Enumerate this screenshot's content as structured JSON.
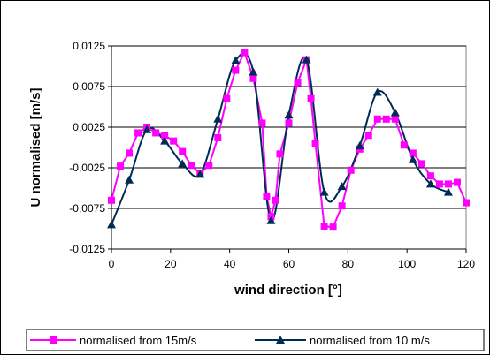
{
  "chart_data": {
    "type": "line",
    "title": "",
    "xlabel": "wind direction [°]",
    "ylabel": "U normalised [m/s]",
    "xlim": [
      0,
      120
    ],
    "ylim": [
      -0.0125,
      0.0125
    ],
    "x_ticks": [
      "0",
      "20",
      "40",
      "60",
      "80",
      "100",
      "120"
    ],
    "y_ticks": [
      "0,0125",
      "0,0075",
      "0,0025",
      "-0,0025",
      "-0,0075",
      "-0,0125"
    ],
    "grid": "horizontal",
    "legend_position": "bottom",
    "colors": {
      "series_1": "#ff00ff",
      "series_2": "#002b55"
    },
    "series": [
      {
        "name": "normalised from 15m/s",
        "marker": "square",
        "x": [
          0,
          3,
          6,
          9,
          12,
          15,
          18,
          21,
          24,
          27,
          30,
          33,
          36,
          39,
          42,
          45,
          48,
          51,
          52.5,
          54,
          55.5,
          57,
          60,
          63,
          66,
          67.5,
          69,
          72,
          75,
          78,
          81,
          84,
          87,
          90,
          93,
          96,
          99,
          102,
          105,
          108,
          111,
          114,
          117,
          120
        ],
        "y": [
          -0.0065,
          -0.0023,
          -0.0007,
          0.0018,
          0.0025,
          0.0018,
          0.0015,
          0.0008,
          -0.0005,
          -0.0022,
          -0.0032,
          -0.0022,
          0.0012,
          0.006,
          0.0095,
          0.0117,
          0.0085,
          0.003,
          -0.006,
          -0.0085,
          -0.0065,
          -0.0008,
          0.003,
          0.008,
          0.0108,
          0.006,
          0.0005,
          -0.0097,
          -0.0098,
          -0.0072,
          -0.0028,
          -0.0002,
          0.0015,
          0.0035,
          0.0035,
          0.0035,
          0.0003,
          -0.0007,
          -0.002,
          -0.0035,
          -0.0045,
          -0.0045,
          -0.0043,
          -0.0068
        ]
      },
      {
        "name": "normalised from 10 m/s",
        "marker": "triangle",
        "x": [
          0,
          6,
          12,
          18,
          24,
          30,
          36,
          42,
          48,
          54,
          60,
          66,
          72,
          78,
          84,
          90,
          96,
          102,
          108,
          114
        ],
        "y": [
          -0.0095,
          -0.004,
          0.0022,
          0.0008,
          -0.002,
          -0.0033,
          0.0035,
          0.0107,
          0.0093,
          -0.009,
          0.004,
          0.0108,
          -0.0055,
          -0.0048,
          0.0002,
          0.0068,
          0.0043,
          -0.0015,
          -0.0045,
          -0.0055
        ]
      }
    ]
  }
}
